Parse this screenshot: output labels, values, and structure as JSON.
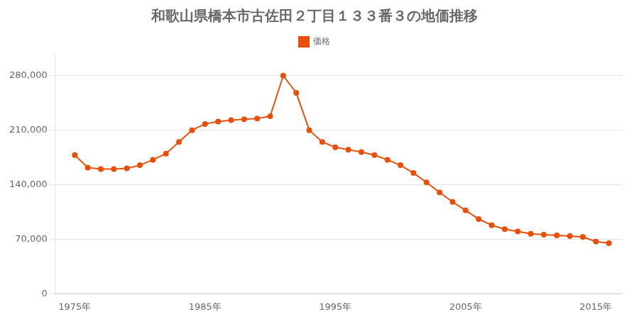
{
  "chart_data": {
    "type": "line",
    "title": "和歌山県橋本市古佐田２丁目１３３番３の地価推移",
    "x": [
      1975,
      1976,
      1977,
      1978,
      1979,
      1980,
      1981,
      1982,
      1983,
      1984,
      1985,
      1986,
      1987,
      1988,
      1989,
      1990,
      1991,
      1992,
      1993,
      1994,
      1995,
      1996,
      1997,
      1998,
      1999,
      2000,
      2001,
      2002,
      2003,
      2004,
      2005,
      2006,
      2007,
      2008,
      2009,
      2010,
      2011,
      2012,
      2013,
      2014,
      2015,
      2016
    ],
    "series": [
      {
        "name": "価格",
        "color": "#E8500A",
        "marker": "circle",
        "line_style": "solid",
        "values": [
          178000,
          162000,
          160000,
          160000,
          161000,
          165000,
          172000,
          180000,
          195000,
          210000,
          218000,
          221000,
          223000,
          224000,
          225000,
          228000,
          280000,
          258000,
          210000,
          195000,
          188000,
          185000,
          182000,
          178000,
          172000,
          165000,
          155000,
          143000,
          130000,
          118000,
          107000,
          96000,
          88000,
          83000,
          80000,
          77000,
          76000,
          75000,
          74000,
          73000,
          67000,
          65000
        ]
      }
    ],
    "xlim": [
      1973.5,
      2017
    ],
    "xticks": [
      {
        "value": 1975,
        "label": "1975年"
      },
      {
        "value": 1985,
        "label": "1985年"
      },
      {
        "value": 1995,
        "label": "1995年"
      },
      {
        "value": 2005,
        "label": "2005年"
      },
      {
        "value": 2015,
        "label": "2015年"
      }
    ],
    "ylim": [
      0,
      308000
    ],
    "yticks": [
      0,
      {
        "value": 70000,
        "label": "70,000"
      },
      {
        "value": 140000,
        "label": "140,000"
      },
      {
        "value": 210000,
        "label": "210,000"
      },
      {
        "value": 280000,
        "label": "280,000"
      }
    ],
    "grid": "y",
    "legend": "top"
  }
}
